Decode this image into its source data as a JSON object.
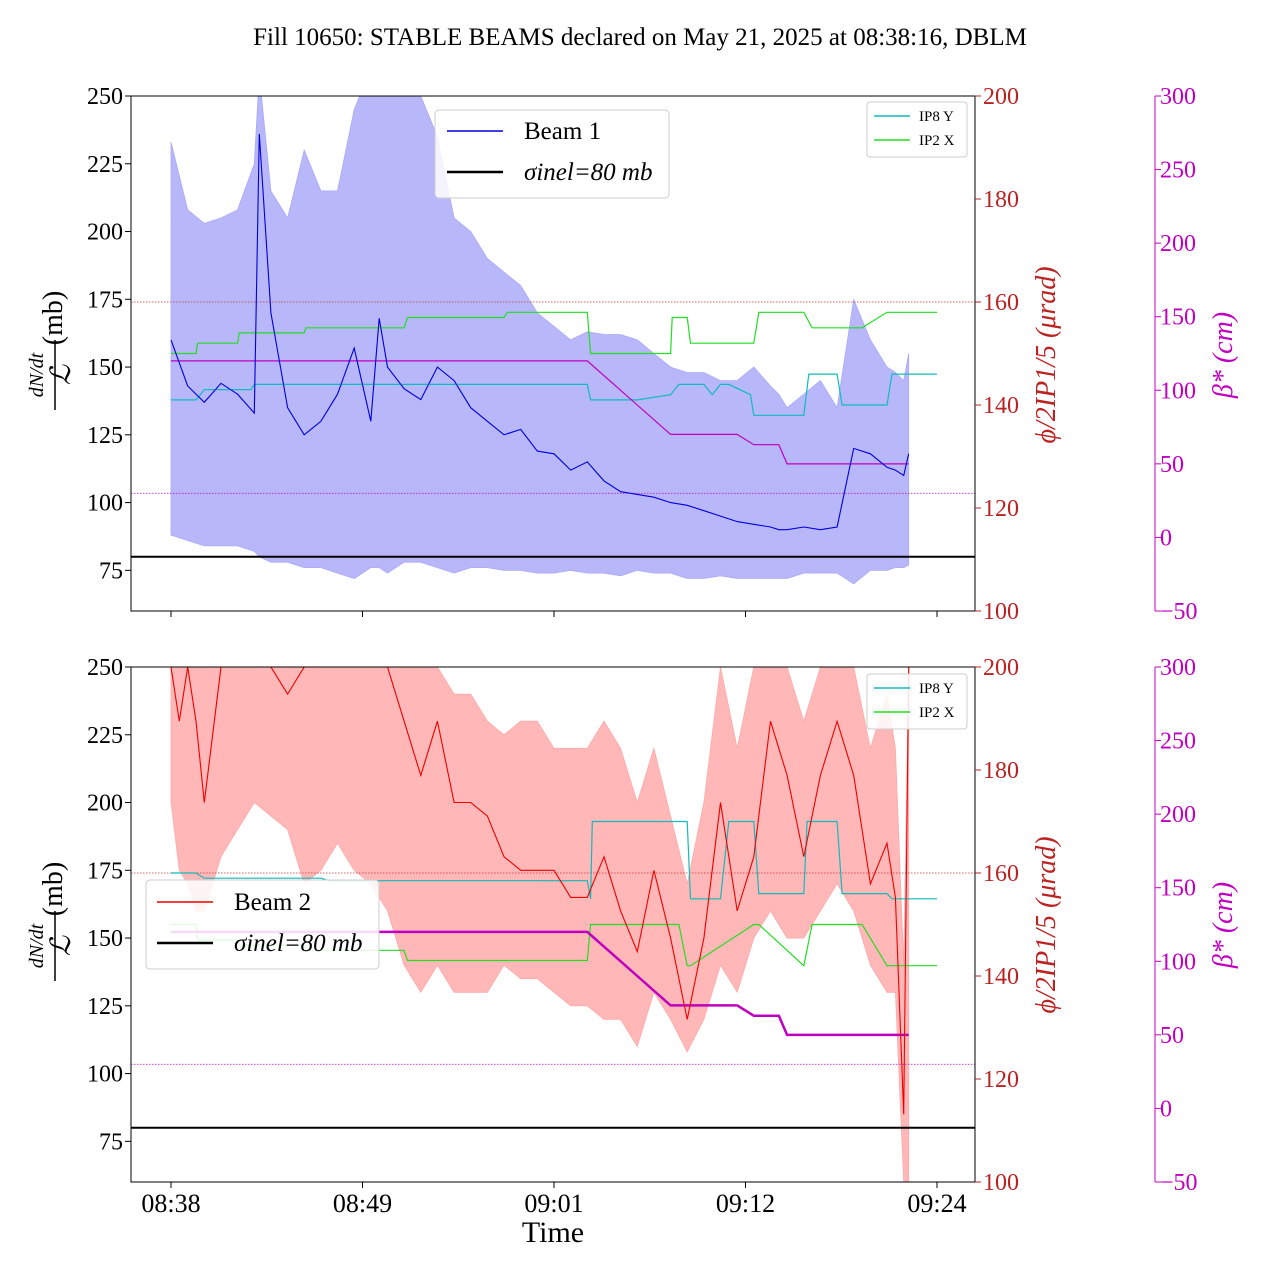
{
  "title": "Fill 10650: STABLE BEAMS declared on May 21, 2025 at 08:38:16, DBLM",
  "colors": {
    "beam1": "#0000dd",
    "beam1_fill": "#aaaaf8",
    "beam2": "#ee0000",
    "beam2_fill": "#ffaaaa",
    "ip8y": "#11bbbb",
    "ip2x": "#22dd22",
    "beta": "#c000c0",
    "angle_axis": "#bb2222",
    "beta_axis": "#c000c0",
    "ref_line": "#000000"
  },
  "chart_data": [
    {
      "type": "line",
      "panel": "top",
      "xlabel": "",
      "ylabel_left": "dN/dt / ℒ (mb)",
      "ylabel_right1": "ϕ/2IP1/5 (μrad)",
      "ylabel_right2": "β* (cm)",
      "x_ticks": [
        "08:38",
        "08:49",
        "09:01",
        "09:12",
        "09:24"
      ],
      "x_range_minutes": [
        0,
        46
      ],
      "ylim_left": [
        60,
        250
      ],
      "ylim_right1": [
        100,
        200
      ],
      "ylim_right2": [
        -50,
        300
      ],
      "yticks_left": [
        75,
        100,
        125,
        150,
        175,
        200,
        225,
        250
      ],
      "yticks_right1": [
        100,
        120,
        140,
        160,
        180,
        200
      ],
      "yticks_right2": [
        -50,
        0,
        50,
        100,
        150,
        200,
        250,
        300
      ],
      "legend_main": [
        "Beam 1",
        "σinel=80 mb"
      ],
      "legend_small": [
        "IP8 Y",
        "IP2 X"
      ],
      "sigma_inel": 80,
      "reference_lines": {
        "angle_160": 160,
        "beta_30": 30
      },
      "beam": {
        "name": "Beam 1",
        "x": [
          0,
          1,
          2,
          3,
          4,
          5,
          5.3,
          6,
          7,
          8,
          9,
          10,
          11,
          12,
          12.5,
          13,
          14,
          15,
          16,
          17,
          18,
          19,
          20,
          21,
          22,
          23,
          24,
          25,
          26,
          27,
          28,
          29,
          30,
          31,
          32,
          33,
          34,
          35,
          36,
          36.5,
          37,
          38,
          39,
          40,
          41,
          42,
          43,
          43.5,
          44,
          44.3
        ],
        "center": [
          160,
          143,
          137,
          144,
          140,
          133,
          236,
          170,
          135,
          125,
          130,
          140,
          157,
          130,
          168,
          150,
          142,
          138,
          150,
          145,
          135,
          130,
          125,
          127,
          119,
          118,
          112,
          115,
          108,
          104,
          103,
          102,
          100,
          99,
          97,
          95,
          93,
          92,
          91,
          90,
          90,
          91,
          90,
          91,
          120,
          118,
          113,
          112,
          110,
          118
        ],
        "upper": [
          233,
          208,
          203,
          205,
          208,
          225,
          258,
          215,
          205,
          230,
          215,
          215,
          245,
          260,
          270,
          270,
          260,
          250,
          235,
          205,
          200,
          190,
          185,
          180,
          170,
          165,
          160,
          163,
          162,
          162,
          160,
          155,
          150,
          148,
          148,
          145,
          145,
          150,
          143,
          140,
          135,
          140,
          145,
          135,
          175,
          160,
          150,
          148,
          145,
          155
        ],
        "lower": [
          88,
          86,
          84,
          84,
          84,
          82,
          80,
          78,
          78,
          76,
          76,
          74,
          72,
          76,
          76,
          74,
          78,
          78,
          76,
          74,
          76,
          76,
          75,
          75,
          74,
          74,
          75,
          74,
          74,
          73,
          75,
          74,
          74,
          72,
          72,
          73,
          72,
          72,
          72,
          72,
          72,
          74,
          74,
          74,
          70,
          75,
          75,
          76,
          76,
          77
        ]
      },
      "ip8y": {
        "name": "IP8 Y",
        "x": [
          0,
          1.5,
          2,
          4.8,
          5,
          9,
          9.5,
          25,
          25.2,
          28,
          30,
          30.5,
          32,
          32.5,
          33,
          33.5,
          34.8,
          35,
          38,
          38.3,
          40,
          40.3,
          43,
          43.3,
          46
        ],
        "y": [
          141,
          141,
          143,
          143,
          144,
          144,
          144,
          144,
          141,
          141,
          142,
          144,
          144,
          142,
          144,
          144,
          142,
          138,
          138,
          146,
          146,
          140,
          140,
          146,
          146
        ]
      },
      "ip2x": {
        "name": "IP2 X",
        "x": [
          0,
          1.5,
          1.6,
          4,
          4.1,
          8,
          8.1,
          14,
          14.2,
          20,
          20.2,
          25,
          25.2,
          30,
          30.1,
          31,
          31.2,
          35,
          35.3,
          38,
          38.5,
          41.5,
          43,
          43.3,
          46
        ],
        "y": [
          150,
          150,
          152,
          152,
          154,
          154,
          155,
          155,
          157,
          157,
          158,
          158,
          150,
          150,
          157,
          157,
          152,
          152,
          158,
          158,
          155,
          155,
          158,
          158,
          158
        ]
      },
      "beta": {
        "name": "beta",
        "x": [
          0,
          25,
          30,
          30.6,
          34,
          35,
          36.5,
          37,
          43.3,
          44.3
        ],
        "y": [
          120,
          120,
          70,
          70,
          70,
          63,
          63,
          50,
          50,
          50
        ]
      }
    },
    {
      "type": "line",
      "panel": "bottom",
      "xlabel": "Time",
      "ylabel_left": "dN/dt / ℒ (mb)",
      "ylabel_right1": "ϕ/2IP1/5 (μrad)",
      "ylabel_right2": "β* (cm)",
      "x_ticks": [
        "08:38",
        "08:49",
        "09:01",
        "09:12",
        "09:24"
      ],
      "x_range_minutes": [
        0,
        46
      ],
      "ylim_left": [
        60,
        250
      ],
      "ylim_right1": [
        100,
        200
      ],
      "ylim_right2": [
        -50,
        300
      ],
      "yticks_left": [
        75,
        100,
        125,
        150,
        175,
        200,
        225,
        250
      ],
      "yticks_right1": [
        100,
        120,
        140,
        160,
        180,
        200
      ],
      "yticks_right2": [
        -50,
        0,
        50,
        100,
        150,
        200,
        250,
        300
      ],
      "legend_main": [
        "Beam 2",
        "σinel=80 mb"
      ],
      "legend_small": [
        "IP8 Y",
        "IP2 X"
      ],
      "sigma_inel": 80,
      "reference_lines": {
        "angle_160": 160,
        "beta_30": 30
      },
      "beam": {
        "name": "Beam 2",
        "x": [
          0,
          0.5,
          1,
          1.5,
          2,
          3,
          4,
          5,
          6,
          7,
          8,
          9,
          10,
          11,
          12,
          13,
          14,
          15,
          16,
          17,
          18,
          19,
          20,
          21,
          22,
          23,
          24,
          25,
          26,
          27,
          28,
          29,
          30,
          31,
          32,
          33,
          34,
          35,
          36,
          37,
          38,
          39,
          40,
          41,
          42,
          43,
          43.5,
          44,
          44.3
        ],
        "center": [
          250,
          230,
          250,
          230,
          200,
          250,
          250,
          250,
          250,
          240,
          250,
          250,
          250,
          250,
          250,
          250,
          230,
          210,
          230,
          200,
          200,
          195,
          180,
          175,
          175,
          175,
          165,
          165,
          180,
          160,
          145,
          175,
          150,
          120,
          150,
          200,
          160,
          180,
          230,
          210,
          180,
          210,
          230,
          210,
          170,
          185,
          165,
          85,
          250
        ],
        "upper": [
          250,
          250,
          250,
          250,
          250,
          250,
          250,
          250,
          250,
          250,
          250,
          250,
          250,
          250,
          250,
          250,
          250,
          250,
          250,
          240,
          240,
          230,
          225,
          230,
          230,
          220,
          220,
          220,
          230,
          220,
          200,
          220,
          195,
          170,
          200,
          250,
          220,
          250,
          250,
          250,
          230,
          250,
          250,
          250,
          220,
          240,
          220,
          140,
          250
        ],
        "lower": [
          200,
          175,
          170,
          160,
          160,
          180,
          190,
          200,
          195,
          190,
          170,
          175,
          185,
          175,
          170,
          160,
          140,
          130,
          140,
          130,
          130,
          130,
          140,
          135,
          135,
          130,
          125,
          125,
          120,
          120,
          110,
          130,
          120,
          108,
          120,
          140,
          130,
          150,
          160,
          150,
          150,
          160,
          170,
          160,
          140,
          130,
          130,
          60,
          60
        ]
      },
      "ip8y": {
        "name": "IP8 Y",
        "x": [
          0,
          1.5,
          2,
          4.8,
          5,
          9,
          9.5,
          25,
          25.2,
          25.3,
          30,
          30.1,
          31,
          31.2,
          33,
          33.5,
          35,
          35.3,
          38,
          38.2,
          40,
          40.3,
          43,
          43.3,
          46
        ],
        "y": [
          160,
          160,
          159,
          159,
          159,
          159,
          158.5,
          158.5,
          155,
          170,
          170,
          170,
          170,
          155,
          155,
          170,
          170,
          156,
          156,
          170,
          170,
          156,
          156,
          155,
          155
        ]
      },
      "ip2x": {
        "name": "IP2 X",
        "x": [
          0,
          1.5,
          1.6,
          4,
          4.1,
          8,
          8.1,
          14,
          14.2,
          20,
          20.2,
          25,
          25.2,
          30,
          30.5,
          31,
          31.2,
          35,
          35.3,
          38,
          38.5,
          41.5,
          43,
          43.3,
          46
        ],
        "y": [
          150,
          150,
          147,
          147,
          146,
          146,
          145,
          145,
          143,
          143,
          143,
          143,
          150,
          150,
          150,
          142,
          142,
          150,
          150,
          142,
          150,
          150,
          142,
          142,
          142
        ]
      },
      "beta": {
        "name": "beta",
        "x": [
          0,
          25,
          30,
          30.6,
          34,
          35,
          36.5,
          37,
          43.3,
          44.3
        ],
        "y": [
          120,
          120,
          70,
          70,
          70,
          63,
          63,
          50,
          50,
          50
        ]
      }
    }
  ]
}
